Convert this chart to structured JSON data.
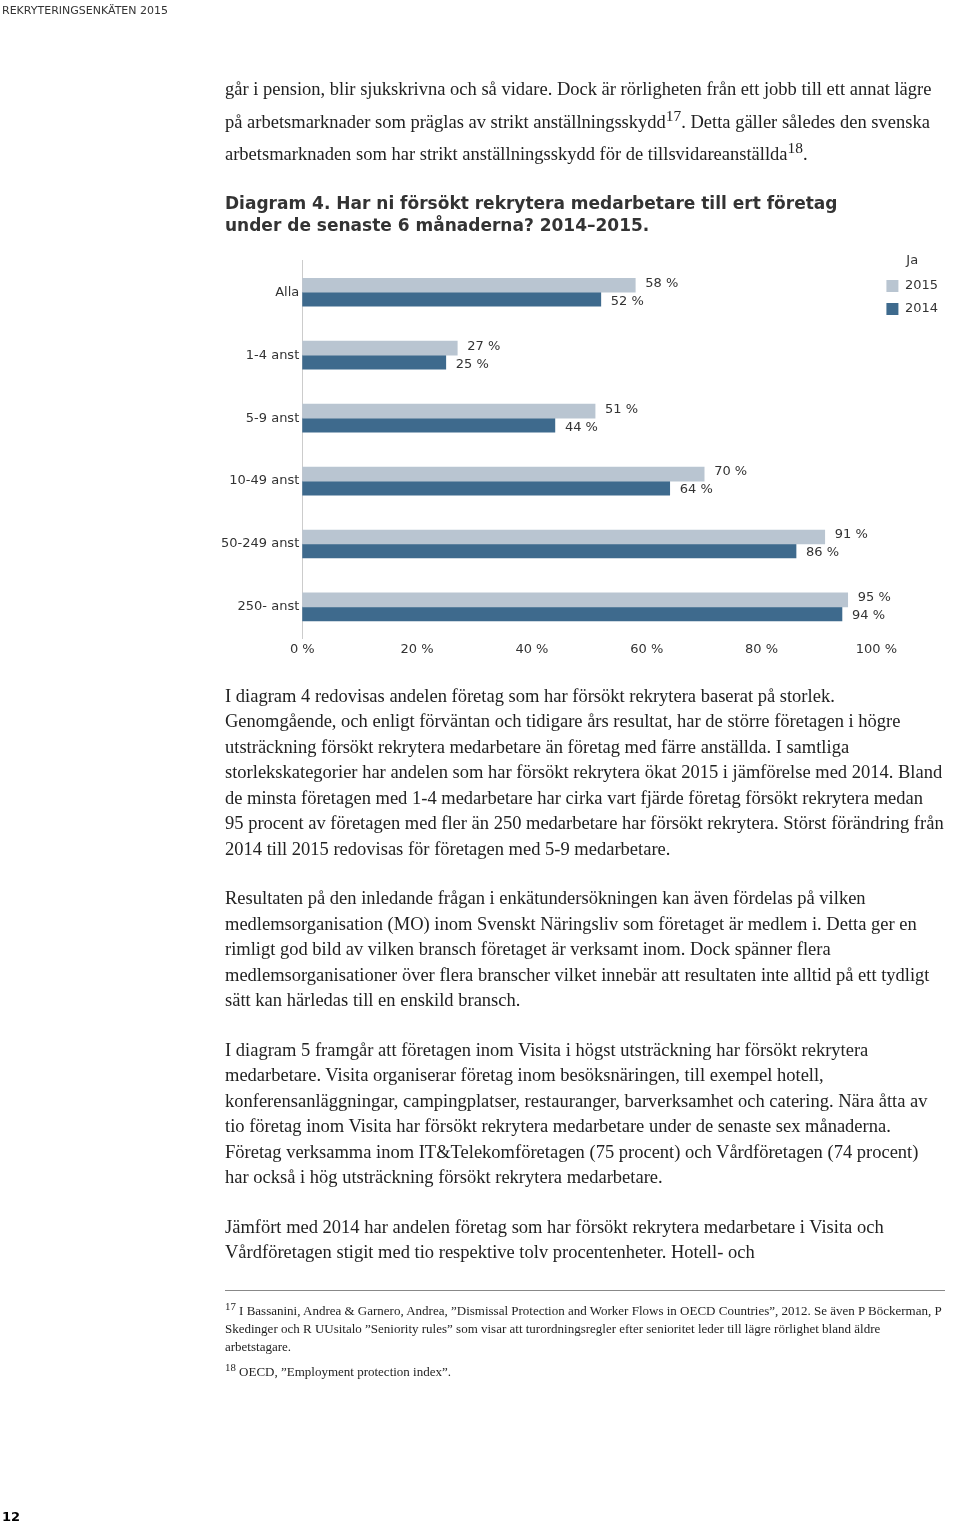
{
  "chart_data": {
    "type": "bar",
    "orientation": "horizontal",
    "title": "Diagram 4. Har ni försökt rekrytera medarbetare till ert företag under de senaste 6 månaderna? 2014–2015.",
    "categories": [
      "Alla",
      "1-4 anst",
      "5-9 anst",
      "10-49 anst",
      "50-249 anst",
      "250- anst"
    ],
    "series": [
      {
        "name": "2015",
        "color": "#b9c5d1",
        "values": [
          58,
          27,
          51,
          70,
          91,
          95
        ],
        "value_labels": [
          "58 %",
          "27 %",
          "51 %",
          "70 %",
          "91 %",
          "95 %"
        ]
      },
      {
        "name": "2014",
        "color": "#3e6a8d",
        "values": [
          52,
          25,
          44,
          64,
          86,
          94
        ],
        "value_labels": [
          "52 %",
          "25 %",
          "44 %",
          "64 %",
          "86 %",
          "94 %"
        ]
      }
    ],
    "xlim": [
      0,
      100
    ],
    "xticks": [
      {
        "value": 0,
        "label": "0 %"
      },
      {
        "value": 20,
        "label": "20 %"
      },
      {
        "value": 40,
        "label": "40 %"
      },
      {
        "value": 60,
        "label": "60 %"
      },
      {
        "value": 80,
        "label": "80 %"
      },
      {
        "value": 100,
        "label": "100 %"
      }
    ],
    "grid": false,
    "legend": "top right",
    "legend_title": "Ja",
    "annotations": [
      "REKRYTERINGSENKÄTEN 2015",
      "går i pension, blir sjukskrivna och så vidare. Dock är rörligheten från ett jobb till ett annat lägre på arbetsmarknader som präglas av strikt anställningsskydd$^{17}$. Detta gäller således den svenska arbetsmarknaden som har strikt anställningsskydd för de tillsvidareanställda$^{18}$.",
      "I diagram 4 redovisas andelen företag som har försökt rekrytera baserat på storlek. Genomgående, och enligt förväntan och tidigare års resultat, har de större företagen i högre utsträckning försökt rekrytera medarbetare än företag med färre anställda. I samtliga storlekskategorier har andelen som har försökt rekrytera ökat 2015 i jämförelse med 2014. Bland de minsta företagen med 1-4 medarbetare har cirka vart fjärde företag försökt rekrytera medan 95 procent av företagen med fler än 250 medarbetare har försökt rekrytera. Störst förändring från 2014 till 2015 redovisas för företagen med 5-9 medarbetare.",
      "Resultaten på den inledande frågan i enkätundersökningen kan även fördelas på vilken medlemsorganisation (MO) inom Svenskt Näringsliv som företaget är medlem i. Detta ger en rimligt god bild av vilken bransch företaget är verksamt inom. Dock spänner flera medlemsorganisationer över flera branscher vilket innebär att resultaten inte alltid på ett tydligt sätt kan härledas till en enskild bransch.",
      "I diagram 5 framgår att företagen inom Visita i högst utsträckning har försökt rekrytera medarbetare. Visita organiserar företag inom besöksnäringen, till exempel hotell, konferensanläggningar, campingplatser, restauranger, barverksamhet och catering. Nära åtta av tio företag inom Visita har försökt rekrytera medarbetare under de senaste sex månaderna. Företag verksamma inom IT&Telekomföretagen (75 procent) och Vårdföretagen (74 procent) har också i hög utsträckning försökt rekrytera medarbetare.",
      "Jämfört med 2014 har andelen företag som har försökt rekrytera medarbetare i Visita och Vårdföretagen stigit med tio respektive tolv procentenheter. Hotell- och",
      "$^{17}$ I Bassanini, Andrea & Garnero, Andrea, ”Dismissal Protection and Worker Flows in OECD Countries”, 2012. Se även P Böckerman, P Skedinger och R UUsitalo ”Seniority rules” som visar att turordningsregler efter senioritet leder till lägre rörlighet bland äldre arbetstagare.",
      "$^{18}$ OECD, ”Employment protection index”.",
      "12"
    ]
  }
}
